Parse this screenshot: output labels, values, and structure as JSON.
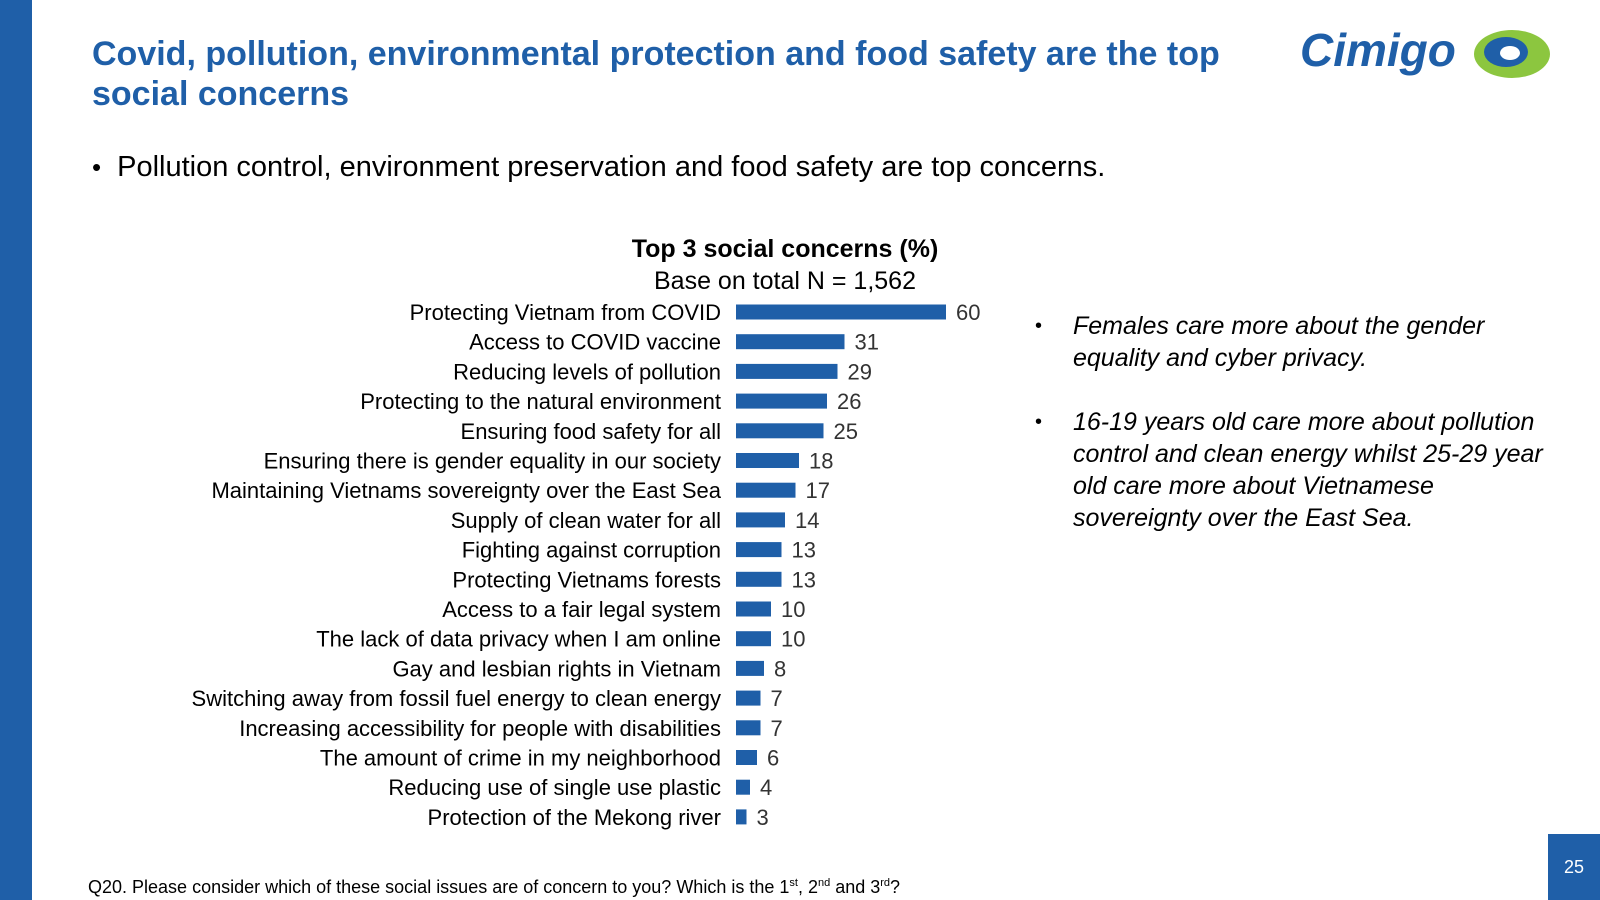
{
  "header": {
    "title": "Covid, pollution, environmental protection and food safety are the top social concerns",
    "logo_text": "Cimigo"
  },
  "intro": {
    "bullet": "•",
    "text": "Pollution control, environment preservation and food safety are top concerns."
  },
  "chart_data": {
    "type": "bar",
    "orientation": "horizontal",
    "title": "Top 3 social concerns (%)",
    "subtitle": "Base on total N = 1,562",
    "categories": [
      "Protecting Vietnam from COVID",
      "Access to COVID vaccine",
      "Reducing levels of pollution",
      "Protecting to the natural environment",
      "Ensuring food safety for all",
      "Ensuring there is gender equality in our society",
      "Maintaining Vietnams sovereignty over the East Sea",
      "Supply of clean water for all",
      "Fighting against corruption",
      "Protecting Vietnams forests",
      "Access to a fair legal system",
      "The lack of data privacy when I am online",
      "Gay and lesbian rights in Vietnam",
      "Switching away from fossil fuel energy to clean energy",
      "Increasing accessibility for people with disabilities",
      "The amount of crime in my neighborhood",
      "Reducing use of single use plastic",
      "Protection of the Mekong river"
    ],
    "values": [
      60,
      31,
      29,
      26,
      25,
      18,
      17,
      14,
      13,
      13,
      10,
      10,
      8,
      7,
      7,
      6,
      4,
      3
    ],
    "xlim": [
      0,
      60
    ],
    "grid": false,
    "bar_color": "#1f5fa8"
  },
  "notes": {
    "bullet": "•",
    "items": [
      "Females care more about the gender equality and cyber privacy.",
      "16-19 years old care more about pollution control and clean energy whilst 25-29 year old care more about Vietnamese sovereignty over the East Sea."
    ]
  },
  "footnote": {
    "q_text": "Q20. Please consider which of these social issues are of concern to you? Which is the 1",
    "sup1": "st",
    "sep1": ", 2",
    "sup2": "nd",
    "sep2": " and 3",
    "sup3": "rd",
    "end": "?"
  },
  "page_number": "25",
  "colors": {
    "brand_blue": "#1f5fa8",
    "logo_green": "#8cc63f"
  }
}
